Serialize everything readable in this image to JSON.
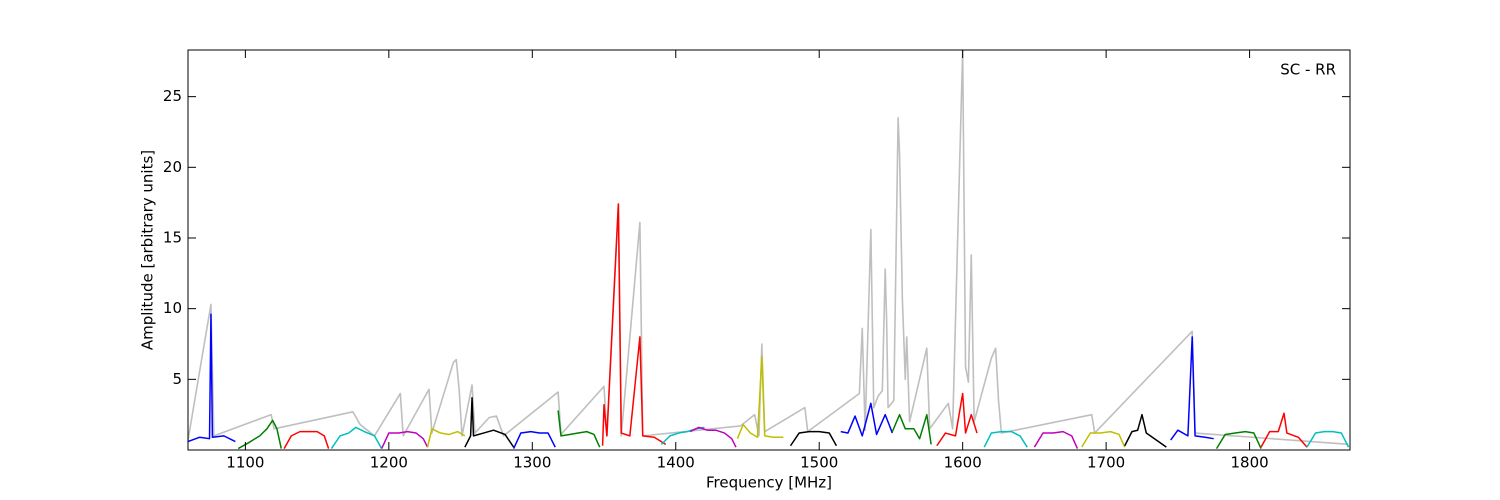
{
  "chart_data": {
    "type": "line",
    "annotation": "SC - RR",
    "x_label": "Frequency [MHz]",
    "y_label": "Amplitude [arbitrary units]",
    "xlim": [
      1060,
      1870
    ],
    "ylim": [
      0,
      28.3
    ],
    "xticks": [
      1100,
      1200,
      1300,
      1400,
      1500,
      1600,
      1700,
      1800
    ],
    "yticks": [
      5,
      10,
      15,
      20,
      25
    ],
    "series": [
      {
        "color": "#bfbfbf",
        "x": [
          1060,
          1076,
          1078,
          1118,
          1120,
          1175,
          1180,
          1190,
          1208,
          1210,
          1228,
          1230,
          1245,
          1247,
          1249,
          1251,
          1258,
          1260,
          1270,
          1275,
          1280,
          1318,
          1320,
          1350,
          1352,
          1360,
          1362,
          1375,
          1377,
          1445,
          1455,
          1458,
          1460,
          1462,
          1490,
          1492,
          1528,
          1530,
          1532,
          1536,
          1538,
          1541,
          1544,
          1546,
          1547,
          1548,
          1552,
          1555,
          1556,
          1558,
          1560,
          1561,
          1563,
          1575,
          1577,
          1590,
          1593,
          1600,
          1602,
          1604,
          1606,
          1608,
          1620,
          1623,
          1625,
          1627,
          1690,
          1692,
          1760,
          1762,
          1869
        ],
        "values": [
          0.7,
          10.3,
          1,
          2.5,
          1.5,
          2.7,
          1.8,
          1,
          4,
          1,
          4.3,
          1.2,
          6.2,
          6.4,
          4.3,
          1,
          4.6,
          1.2,
          2.3,
          2.4,
          1,
          4.1,
          1.1,
          4.5,
          1,
          17.4,
          1,
          16.1,
          1,
          1.7,
          2.5,
          1,
          7.5,
          1.3,
          3,
          1.3,
          4,
          8.6,
          1.4,
          15.6,
          3,
          3.8,
          4.2,
          12.8,
          9.2,
          3,
          3.5,
          23.5,
          20.9,
          10.6,
          5,
          8,
          2,
          7.2,
          1.5,
          3.3,
          1.5,
          28.3,
          5.9,
          4.8,
          13.8,
          2,
          6.5,
          7.2,
          3.5,
          1.2,
          2.5,
          1.2,
          8.4,
          1.2,
          0.4
        ]
      },
      {
        "color": "#0000ff",
        "x": [
          1060,
          1068,
          1075,
          1076,
          1077,
          1085,
          1093
        ],
        "values": [
          0.6,
          0.9,
          0.8,
          9.6,
          0.9,
          1.0,
          0.6
        ]
      },
      {
        "color": "#008000",
        "x": [
          1095,
          1102,
          1110,
          1115,
          1119,
          1122,
          1125
        ],
        "values": [
          0.1,
          0.5,
          1.0,
          1.5,
          2.1,
          1.5,
          0.1
        ]
      },
      {
        "color": "#ff0000",
        "x": [
          1127,
          1132,
          1138,
          1144,
          1150,
          1155,
          1158
        ],
        "values": [
          0.1,
          1.0,
          1.3,
          1.3,
          1.3,
          1.0,
          0.1
        ]
      },
      {
        "color": "#00bfbf",
        "x": [
          1160,
          1166,
          1172,
          1177,
          1183,
          1190,
          1195
        ],
        "values": [
          0.1,
          1.0,
          1.2,
          1.6,
          1.3,
          1.0,
          0.1
        ]
      },
      {
        "color": "#bf00bf",
        "x": [
          1195,
          1200,
          1207,
          1213,
          1219,
          1224,
          1227
        ],
        "values": [
          0.1,
          1.2,
          1.2,
          1.3,
          1.2,
          0.8,
          0.2
        ]
      },
      {
        "color": "#bfbf00",
        "x": [
          1227,
          1230,
          1236,
          1242,
          1248,
          1253
        ],
        "values": [
          0.2,
          1.5,
          1.2,
          1.1,
          1.3,
          1.0
        ]
      },
      {
        "color": "#000000",
        "x": [
          1253,
          1257,
          1258,
          1259,
          1266,
          1273,
          1281,
          1287
        ],
        "values": [
          0.2,
          1.0,
          3.7,
          1.0,
          1.2,
          1.4,
          1.1,
          0.2
        ]
      },
      {
        "color": "#0000ff",
        "x": [
          1287,
          1292,
          1299,
          1305,
          1311,
          1316
        ],
        "values": [
          0.1,
          1.2,
          1.3,
          1.2,
          1.2,
          0.2
        ]
      },
      {
        "color": "#008000",
        "x": [
          1318,
          1320,
          1326,
          1332,
          1338,
          1343,
          1347
        ],
        "values": [
          2.8,
          1.0,
          1.1,
          1.2,
          1.3,
          1.1,
          0.2
        ]
      },
      {
        "color": "#ff0000",
        "x": [
          1349,
          1350,
          1352,
          1360,
          1362,
          1368,
          1375,
          1377,
          1385,
          1393
        ],
        "values": [
          0.3,
          3.2,
          1.0,
          17.4,
          1.2,
          1.0,
          8.0,
          1.0,
          0.9,
          0.4
        ]
      },
      {
        "color": "#00bfbf",
        "x": [
          1390,
          1396,
          1402,
          1408,
          1414,
          1420
        ],
        "values": [
          0.4,
          1.0,
          1.2,
          1.3,
          1.5,
          1.6
        ]
      },
      {
        "color": "#bf00bf",
        "x": [
          1410,
          1416,
          1422,
          1428,
          1434,
          1439,
          1442
        ],
        "values": [
          1.3,
          1.6,
          1.4,
          1.4,
          1.2,
          0.8,
          0.2
        ]
      },
      {
        "color": "#bfbf00",
        "x": [
          1443,
          1447,
          1452,
          1457,
          1460,
          1462,
          1468,
          1475
        ],
        "values": [
          0.8,
          1.8,
          1.2,
          0.9,
          6.6,
          1.0,
          0.9,
          0.9
        ]
      },
      {
        "color": "#000000",
        "x": [
          1480,
          1486,
          1493,
          1500,
          1507,
          1512
        ],
        "values": [
          0.3,
          1.2,
          1.3,
          1.3,
          1.2,
          0.3
        ]
      },
      {
        "color": "#0000ff",
        "x": [
          1515,
          1520,
          1525,
          1530,
          1536,
          1540,
          1546,
          1551
        ],
        "values": [
          1.3,
          1.2,
          2.4,
          1.0,
          3.3,
          1.1,
          2.5,
          1.2
        ]
      },
      {
        "color": "#008000",
        "x": [
          1551,
          1556,
          1560,
          1566,
          1570,
          1575,
          1578
        ],
        "values": [
          1.3,
          2.5,
          1.5,
          1.5,
          0.8,
          2.5,
          0.4
        ]
      },
      {
        "color": "#ff0000",
        "x": [
          1582,
          1588,
          1595,
          1600,
          1602,
          1606,
          1610
        ],
        "values": [
          0.3,
          1.2,
          1.0,
          4.0,
          1.2,
          2.5,
          1.2
        ]
      },
      {
        "color": "#00bfbf",
        "x": [
          1615,
          1620,
          1627,
          1634,
          1640,
          1645
        ],
        "values": [
          0.2,
          1.2,
          1.3,
          1.3,
          1.0,
          0.2
        ]
      },
      {
        "color": "#bf00bf",
        "x": [
          1650,
          1656,
          1663,
          1670,
          1676,
          1680
        ],
        "values": [
          0.2,
          1.2,
          1.2,
          1.3,
          1.0,
          0.1
        ]
      },
      {
        "color": "#bfbf00",
        "x": [
          1683,
          1689,
          1696,
          1703,
          1709,
          1713
        ],
        "values": [
          0.2,
          1.2,
          1.2,
          1.3,
          1.1,
          0.2
        ]
      },
      {
        "color": "#000000",
        "x": [
          1713,
          1718,
          1722,
          1725,
          1728,
          1742
        ],
        "values": [
          0.3,
          1.3,
          1.4,
          2.5,
          1.2,
          0.2
        ]
      },
      {
        "color": "#0000ff",
        "x": [
          1745,
          1750,
          1757,
          1760,
          1762,
          1769,
          1775
        ],
        "values": [
          0.7,
          1.4,
          1.0,
          8.0,
          1.0,
          0.9,
          0.8
        ]
      },
      {
        "color": "#008000",
        "x": [
          1777,
          1783,
          1790,
          1797,
          1803,
          1808
        ],
        "values": [
          0.1,
          1.1,
          1.2,
          1.3,
          1.2,
          0.1
        ]
      },
      {
        "color": "#ff0000",
        "x": [
          1808,
          1814,
          1820,
          1824,
          1826,
          1834,
          1840
        ],
        "values": [
          0.2,
          1.3,
          1.3,
          2.6,
          1.2,
          0.9,
          0.2
        ]
      },
      {
        "color": "#00bfbf",
        "x": [
          1840,
          1846,
          1852,
          1858,
          1864,
          1869
        ],
        "values": [
          0.2,
          1.2,
          1.3,
          1.3,
          1.2,
          0.2
        ]
      }
    ]
  }
}
